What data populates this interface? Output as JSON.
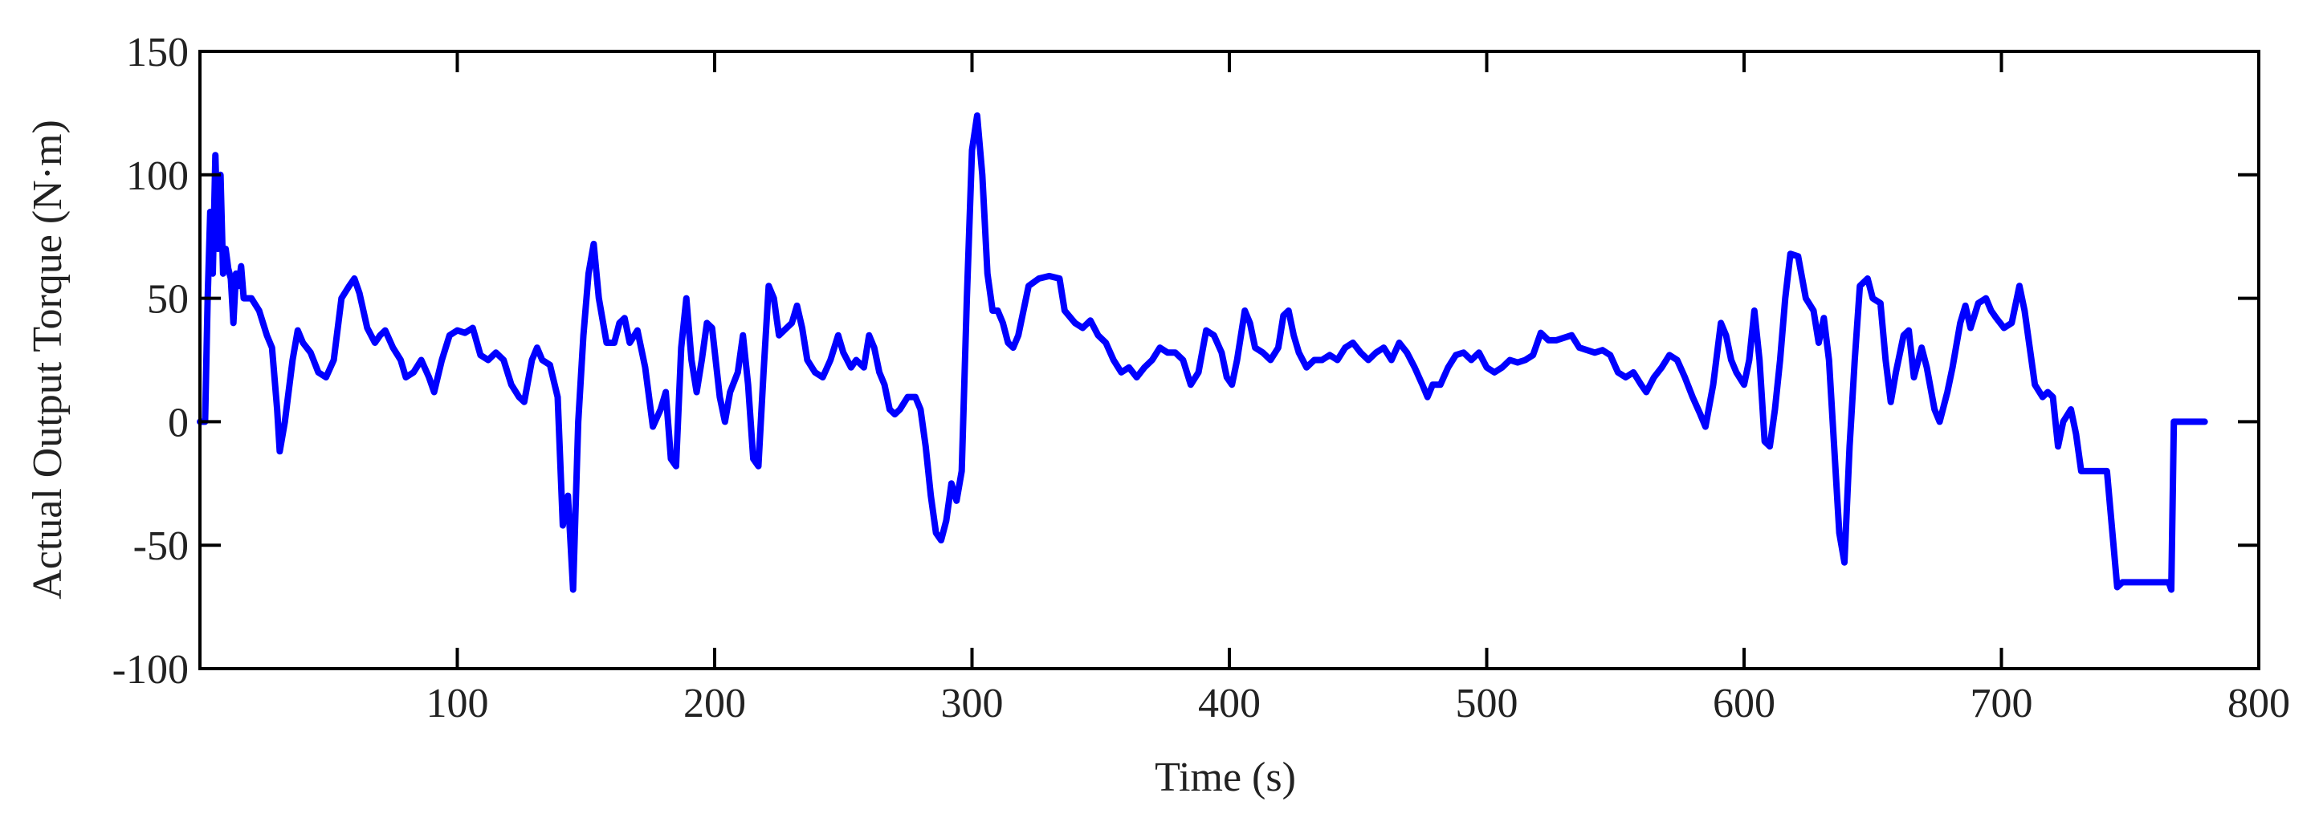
{
  "chart_data": {
    "type": "line",
    "xlabel": "Time (s)",
    "ylabel": "Actual Output Torque (N·m)",
    "xlim": [
      0,
      800
    ],
    "xticks": [
      100,
      200,
      300,
      400,
      500,
      600,
      700,
      800
    ],
    "ylim": [
      -100,
      150
    ],
    "yticks": [
      -100,
      -50,
      0,
      50,
      100,
      150
    ],
    "color": "#0000ff",
    "x": [
      0,
      2,
      3,
      4,
      5,
      6,
      7,
      8,
      9,
      10,
      11,
      12,
      13,
      14,
      15,
      16,
      17,
      20,
      23,
      26,
      28,
      30,
      31,
      33,
      36,
      38,
      40,
      43,
      46,
      49,
      52,
      55,
      58,
      60,
      62,
      65,
      68,
      70,
      72,
      75,
      78,
      80,
      83,
      86,
      89,
      91,
      94,
      97,
      100,
      103,
      106,
      109,
      112,
      115,
      118,
      121,
      124,
      126,
      129,
      131,
      133,
      136,
      139,
      141,
      143,
      145,
      147,
      149,
      151,
      153,
      155,
      158,
      161,
      163,
      165,
      167,
      170,
      173,
      176,
      179,
      181,
      183,
      185,
      187,
      189,
      191,
      193,
      195,
      197,
      199,
      202,
      204,
      206,
      209,
      211,
      213,
      215,
      217,
      219,
      221,
      223,
      225,
      228,
      230,
      232,
      234,
      236,
      239,
      242,
      245,
      248,
      250,
      253,
      255,
      258,
      260,
      262,
      264,
      266,
      268,
      270,
      272,
      275,
      278,
      280,
      282,
      284,
      286,
      288,
      290,
      292,
      294,
      296,
      298,
      300,
      302,
      304,
      306,
      308,
      310,
      312,
      314,
      316,
      318,
      320,
      322,
      326,
      330,
      334,
      336,
      340,
      343,
      346,
      349,
      352,
      355,
      358,
      361,
      364,
      367,
      370,
      373,
      376,
      379,
      382,
      385,
      388,
      391,
      394,
      397,
      399,
      401,
      403,
      406,
      408,
      410,
      413,
      416,
      419,
      421,
      423,
      425,
      427,
      430,
      433,
      436,
      439,
      442,
      445,
      448,
      451,
      454,
      457,
      460,
      463,
      466,
      469,
      472,
      475,
      477,
      479,
      482,
      485,
      488,
      491,
      494,
      497,
      500,
      503,
      506,
      509,
      512,
      515,
      518,
      521,
      524,
      527,
      530,
      533,
      536,
      539,
      542,
      545,
      548,
      551,
      554,
      557,
      560,
      562,
      565,
      568,
      571,
      574,
      577,
      580,
      583,
      585,
      588,
      591,
      593,
      595,
      597,
      600,
      602,
      604,
      606,
      608,
      610,
      612,
      614,
      616,
      618,
      621,
      624,
      627,
      629,
      631,
      633,
      635,
      637,
      639,
      641,
      643,
      645,
      648,
      650,
      653,
      655,
      657,
      659,
      662,
      664,
      666,
      669,
      671,
      674,
      676,
      679,
      681,
      684,
      686,
      688,
      691,
      694,
      696,
      698,
      701,
      704,
      707,
      709,
      711,
      713,
      716,
      718,
      720,
      722,
      724,
      727,
      729,
      731,
      735,
      741,
      745,
      747,
      765,
      766,
      767,
      779
    ],
    "values": [
      0,
      0,
      50,
      85,
      60,
      108,
      70,
      100,
      60,
      70,
      62,
      58,
      40,
      60,
      55,
      63,
      50,
      50,
      45,
      35,
      30,
      5,
      -12,
      0,
      25,
      37,
      32,
      28,
      20,
      18,
      25,
      50,
      55,
      58,
      52,
      38,
      32,
      35,
      37,
      30,
      25,
      18,
      20,
      25,
      18,
      12,
      25,
      35,
      37,
      36,
      38,
      27,
      25,
      28,
      25,
      15,
      10,
      8,
      25,
      30,
      25,
      23,
      10,
      -42,
      -30,
      -68,
      0,
      35,
      60,
      72,
      50,
      32,
      32,
      40,
      42,
      32,
      37,
      22,
      -2,
      5,
      12,
      -15,
      -18,
      30,
      50,
      25,
      12,
      25,
      40,
      38,
      10,
      0,
      12,
      20,
      35,
      15,
      -15,
      -18,
      20,
      55,
      50,
      35,
      38,
      40,
      47,
      38,
      25,
      20,
      18,
      25,
      35,
      28,
      22,
      25,
      22,
      35,
      30,
      20,
      15,
      5,
      3,
      5,
      10,
      10,
      5,
      -10,
      -30,
      -45,
      -48,
      -40,
      -25,
      -32,
      -20,
      50,
      110,
      124,
      100,
      60,
      45,
      45,
      40,
      32,
      30,
      35,
      45,
      55,
      58,
      59,
      58,
      45,
      40,
      38,
      41,
      35,
      32,
      25,
      20,
      22,
      18,
      22,
      25,
      30,
      28,
      28,
      25,
      15,
      20,
      37,
      35,
      28,
      18,
      15,
      25,
      45,
      40,
      30,
      28,
      25,
      30,
      43,
      45,
      35,
      28,
      22,
      25,
      25,
      27,
      25,
      30,
      32,
      28,
      25,
      28,
      30,
      25,
      32,
      28,
      22,
      15,
      10,
      15,
      15,
      22,
      27,
      28,
      25,
      28,
      22,
      20,
      22,
      25,
      24,
      25,
      27,
      36,
      33,
      33,
      34,
      35,
      30,
      29,
      28,
      29,
      27,
      20,
      18,
      20,
      15,
      12,
      18,
      22,
      27,
      25,
      18,
      10,
      3,
      -2,
      15,
      40,
      35,
      25,
      20,
      15,
      25,
      45,
      25,
      -8,
      -10,
      5,
      25,
      50,
      68,
      67,
      50,
      45,
      32,
      42,
      25,
      -10,
      -45,
      -57,
      -10,
      25,
      55,
      58,
      50,
      48,
      25,
      8,
      20,
      35,
      37,
      18,
      30,
      22,
      5,
      0,
      12,
      22,
      40,
      47,
      38,
      48,
      50,
      45,
      42,
      38,
      40,
      55,
      45,
      30,
      15,
      10,
      12,
      10,
      -10,
      0,
      5,
      -5,
      -20,
      -20,
      -20,
      -67,
      -65,
      -65,
      -68,
      0,
      0
    ]
  }
}
